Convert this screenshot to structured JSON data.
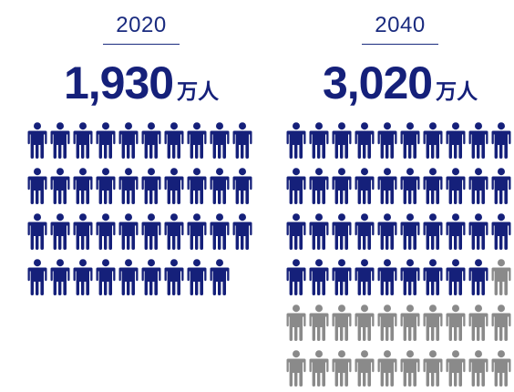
{
  "colors": {
    "filled": "#15207a",
    "extra": "#8a8a8a",
    "text": "#1a2b7f"
  },
  "icon": "person-icon",
  "chart_data": [
    {
      "type": "pictogram",
      "category": "2020",
      "value": 1930,
      "value_label": "1,930",
      "unit": "万人",
      "icons_filled": 39,
      "icons_gray": 0,
      "icons_per_row": 10
    },
    {
      "type": "pictogram",
      "category": "2040",
      "value": 3020,
      "value_label": "3,020",
      "unit": "万人",
      "icons_filled": 39,
      "icons_gray": 21,
      "icons_per_row": 10
    }
  ]
}
